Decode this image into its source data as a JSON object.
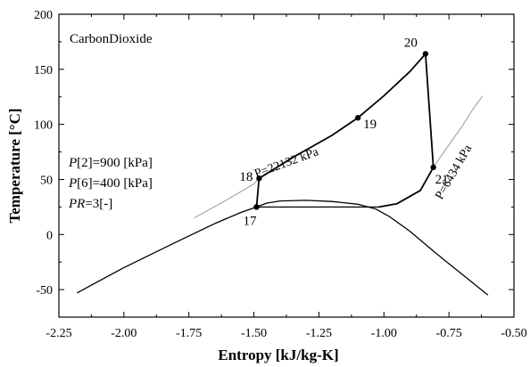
{
  "chart_data": {
    "type": "line",
    "title": "",
    "fluid_label": "CarbonDioxide",
    "xlabel": "Entropy [kJ/kg-K]",
    "ylabel": "Temperature [°C]",
    "xlim": [
      -2.25,
      -0.5
    ],
    "ylim": [
      -75,
      200
    ],
    "xticks": [
      -2.25,
      -2.0,
      -1.75,
      -1.5,
      -1.25,
      -1.0,
      -0.75,
      -0.5
    ],
    "xtick_labels": [
      "-2.25",
      "-2.00",
      "-1.75",
      "-1.50",
      "-1.25",
      "-1.00",
      "-0.75",
      "-0.50"
    ],
    "yticks": [
      -50,
      0,
      50,
      100,
      150,
      200
    ],
    "ytick_labels": [
      "-50",
      "0",
      "50",
      "100",
      "150",
      "200"
    ],
    "grid": false,
    "annotations": [
      {
        "var": "P",
        "text": "[2]=900 [kPa]"
      },
      {
        "var": "P",
        "text": "[6]=400 [kPa]"
      },
      {
        "var": "PR",
        "text": "=3[-]"
      }
    ],
    "series": [
      {
        "role": "saturation-dome",
        "color": "#000000",
        "x": [
          -2.18,
          -2.0,
          -1.8,
          -1.65,
          -1.55,
          -1.49,
          -1.45,
          -1.4,
          -1.3,
          -1.2,
          -1.1,
          -1.03,
          -0.98,
          -0.9,
          -0.8,
          -0.7,
          -0.6
        ],
        "y": [
          -53,
          -30,
          -7,
          10,
          20,
          25,
          28.5,
          30.5,
          31,
          30,
          27.5,
          23,
          16.5,
          3,
          -17,
          -36,
          -55
        ]
      },
      {
        "role": "isotherm-17",
        "color": "#000000",
        "x": [
          -1.49,
          -1.45,
          -1.35,
          -1.25,
          -1.15,
          -1.05,
          -1.02
        ],
        "y": [
          25,
          25,
          25,
          25,
          25,
          25,
          25
        ]
      },
      {
        "role": "cycle",
        "color": "#000000",
        "x": [
          -1.49,
          -1.48,
          -1.35,
          -1.2,
          -1.1,
          -1.0,
          -0.9,
          -0.84,
          -0.81,
          -0.86,
          -0.95,
          -1.02
        ],
        "y": [
          25,
          51,
          70,
          90,
          106,
          126,
          148,
          164,
          61,
          40,
          28,
          25
        ]
      },
      {
        "role": "isobar-22132kPa",
        "color": "#999999",
        "x": [
          -1.73,
          -1.6,
          -1.5,
          -1.48
        ],
        "y": [
          15,
          32,
          46,
          51
        ]
      },
      {
        "role": "isobar-6434kPa",
        "color": "#999999",
        "x": [
          -0.81,
          -0.76,
          -0.7,
          -0.66,
          -0.62
        ],
        "y": [
          61,
          78,
          98,
          113,
          126
        ]
      }
    ],
    "points": [
      {
        "label": "17",
        "x": -1.49,
        "y": 25
      },
      {
        "label": "18",
        "x": -1.48,
        "y": 51
      },
      {
        "label": "19",
        "x": -1.1,
        "y": 106
      },
      {
        "label": "20",
        "x": -0.84,
        "y": 164
      },
      {
        "label": "21",
        "x": -0.81,
        "y": 61
      }
    ],
    "isobar_labels": [
      {
        "text": "P=22132 kPa",
        "x": -1.37,
        "y": 62,
        "angle": -20
      },
      {
        "text": "P=6434 kPa",
        "x": -0.72,
        "y": 55,
        "angle": -60
      }
    ]
  }
}
